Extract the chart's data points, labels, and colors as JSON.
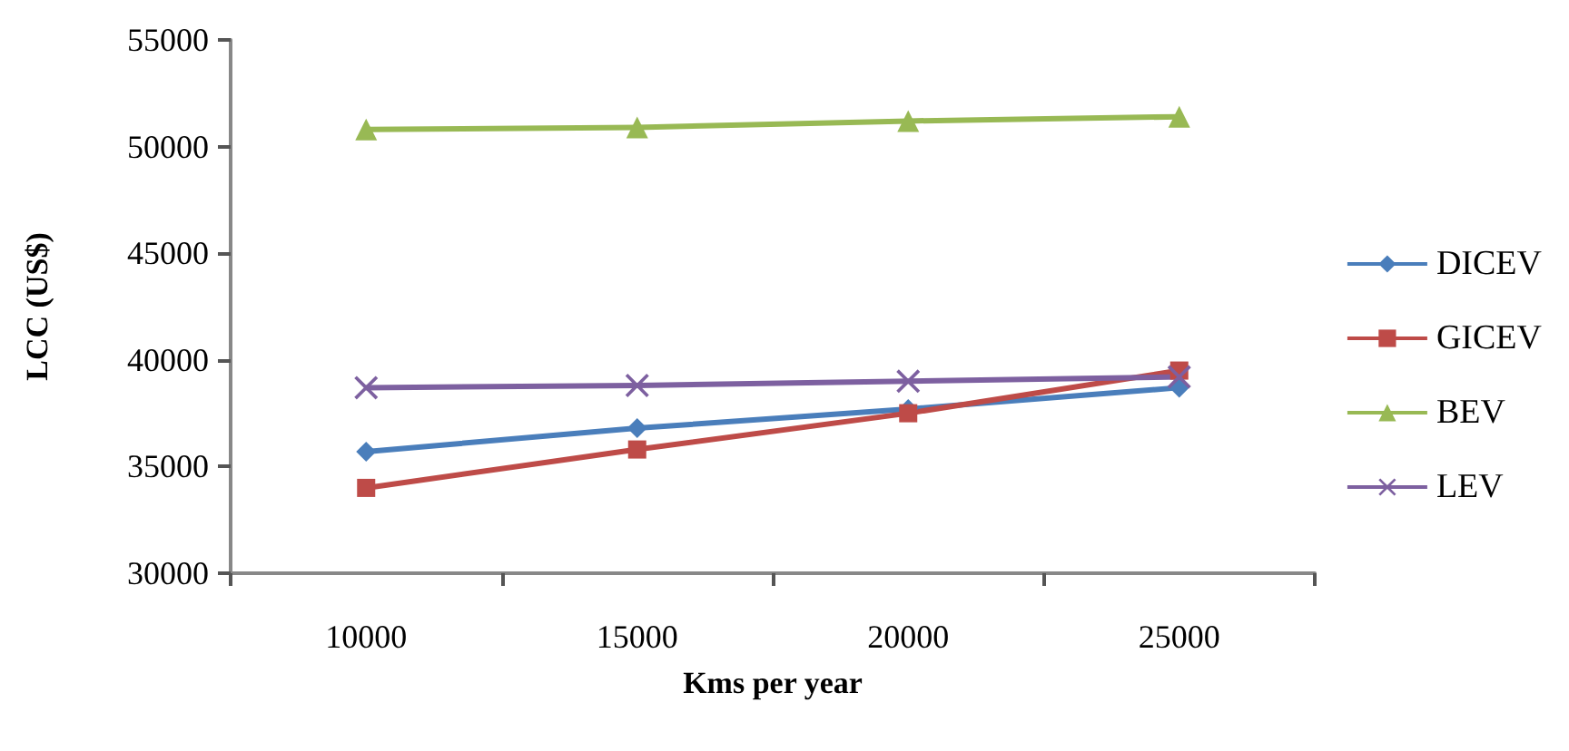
{
  "chart_data": {
    "type": "line",
    "xlabel": "Kms per year",
    "ylabel": "LCC (US$)",
    "categories": [
      "10000",
      "15000",
      "20000",
      "25000"
    ],
    "series": [
      {
        "name": "DICEV",
        "color": "#4a7ebb",
        "marker": "diamond",
        "values": [
          35700,
          36800,
          37700,
          38700
        ]
      },
      {
        "name": "GICEV",
        "color": "#be4b48",
        "marker": "square",
        "values": [
          34000,
          35800,
          37500,
          39500
        ]
      },
      {
        "name": "BEV",
        "color": "#98b954",
        "marker": "triangle",
        "values": [
          50800,
          50900,
          51200,
          51400
        ]
      },
      {
        "name": "LEV",
        "color": "#7d60a0",
        "marker": "cross",
        "values": [
          38700,
          38800,
          39000,
          39200
        ]
      }
    ],
    "ylim": [
      30000,
      55000
    ],
    "yticks": [
      30000,
      35000,
      40000,
      45000,
      50000,
      55000
    ],
    "grid": false,
    "legend": "right"
  }
}
